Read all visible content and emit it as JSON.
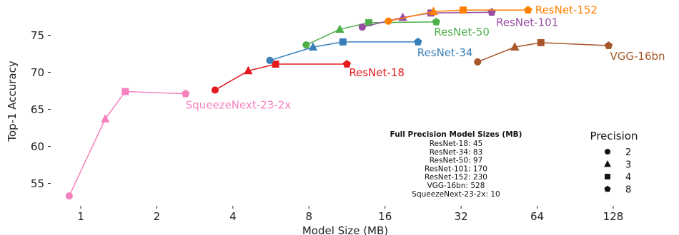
{
  "chart_data": {
    "type": "scatter",
    "xlabel": "Model Size (MB)",
    "ylabel": "Top-1 Accuracy",
    "x_scale": "log2",
    "xlim": [
      0.78,
      175
    ],
    "ylim": [
      52,
      78.5
    ],
    "x_ticks": [
      1,
      2,
      4,
      8,
      16,
      32,
      64,
      128
    ],
    "x_tick_labels": [
      "1",
      "2",
      "4",
      "8",
      "16",
      "32",
      "64",
      "128"
    ],
    "y_ticks": [
      55,
      60,
      65,
      70,
      75
    ],
    "y_tick_labels": [
      "55",
      "60",
      "65",
      "70",
      "75"
    ],
    "grid": false,
    "precision_markers": {
      "2": "circle",
      "3": "triangle",
      "4": "square",
      "8": "pentagon"
    },
    "series": [
      {
        "name": "ResNet-18",
        "color": "#e41a1c",
        "points": [
          {
            "x": 3.4,
            "y": 67.6,
            "precision": 2
          },
          {
            "x": 4.6,
            "y": 70.2,
            "precision": 3
          },
          {
            "x": 5.9,
            "y": 71.1,
            "precision": 4
          },
          {
            "x": 11.3,
            "y": 71.1,
            "precision": 8
          }
        ]
      },
      {
        "name": "ResNet-34",
        "color": "#377eb8",
        "points": [
          {
            "x": 5.6,
            "y": 71.6,
            "precision": 2
          },
          {
            "x": 8.3,
            "y": 73.4,
            "precision": 3
          },
          {
            "x": 10.9,
            "y": 74.1,
            "precision": 4
          },
          {
            "x": 21.6,
            "y": 74.1,
            "precision": 8
          }
        ]
      },
      {
        "name": "ResNet-50",
        "color": "#4daf4a",
        "points": [
          {
            "x": 7.8,
            "y": 73.7,
            "precision": 2
          },
          {
            "x": 10.6,
            "y": 75.8,
            "precision": 3
          },
          {
            "x": 13.8,
            "y": 76.7,
            "precision": 4
          },
          {
            "x": 25.5,
            "y": 76.8,
            "precision": 8
          }
        ]
      },
      {
        "name": "ResNet-101",
        "color": "#984ea3",
        "points": [
          {
            "x": 13.0,
            "y": 76.1,
            "precision": 2
          },
          {
            "x": 18.8,
            "y": 77.4,
            "precision": 3
          },
          {
            "x": 24.3,
            "y": 78.0,
            "precision": 4
          },
          {
            "x": 42.3,
            "y": 78.1,
            "precision": 8
          }
        ]
      },
      {
        "name": "ResNet-152",
        "color": "#ff7f00",
        "points": [
          {
            "x": 16.5,
            "y": 76.9,
            "precision": 2
          },
          {
            "x": 24.9,
            "y": 78.2,
            "precision": 3
          },
          {
            "x": 32.6,
            "y": 78.4,
            "precision": 4
          },
          {
            "x": 58.9,
            "y": 78.4,
            "precision": 8
          }
        ]
      },
      {
        "name": "VGG-16bn",
        "color": "#a65628",
        "points": [
          {
            "x": 37.2,
            "y": 71.4,
            "precision": 2
          },
          {
            "x": 52.2,
            "y": 73.4,
            "precision": 3
          },
          {
            "x": 66.2,
            "y": 74.0,
            "precision": 4
          },
          {
            "x": 122.7,
            "y": 73.6,
            "precision": 8
          }
        ]
      },
      {
        "name": "SqueezeNext-23-2x",
        "color": "#f781bf",
        "points": [
          {
            "x": 0.9,
            "y": 53.3,
            "precision": 2
          },
          {
            "x": 1.25,
            "y": 63.7,
            "precision": 3
          },
          {
            "x": 1.5,
            "y": 67.4,
            "precision": 4
          },
          {
            "x": 2.6,
            "y": 67.1,
            "precision": 8
          }
        ]
      }
    ],
    "info_box": {
      "title": "Full Precision Model Sizes (MB)",
      "lines": [
        "ResNet-18: 45",
        "ResNet-34: 83",
        "ResNet-50: 97",
        "ResNet-101: 170",
        "ResNet-152: 230",
        "VGG-16bn: 528",
        "SqueezeNext-23-2x: 10"
      ]
    },
    "legend": {
      "title": "Precision",
      "position": "lower-right",
      "entries": [
        {
          "label": "2",
          "marker": "circle"
        },
        {
          "label": "3",
          "marker": "triangle"
        },
        {
          "label": "4",
          "marker": "square"
        },
        {
          "label": "8",
          "marker": "pentagon"
        }
      ]
    }
  }
}
